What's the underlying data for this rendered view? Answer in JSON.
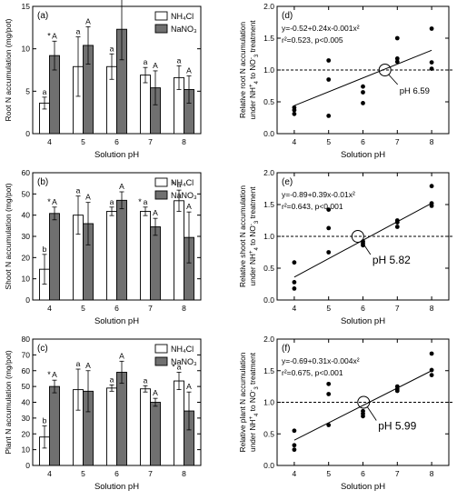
{
  "colors": {
    "white_bar": "#ffffff",
    "gray_bar": "#707070",
    "axis": "#000000"
  },
  "chart_data": [
    {
      "id": "a",
      "type": "bar",
      "panel_label": "(a)",
      "ylabel": "Root N accumulation (mg/pot)",
      "xlabel": "Solution pH",
      "categories": [
        "4",
        "5",
        "6",
        "7",
        "8"
      ],
      "ylim": [
        0,
        15
      ],
      "yticks": [
        "0",
        "5",
        "10",
        "15"
      ],
      "yticks_v": [
        0,
        5,
        10,
        15
      ],
      "legend": [
        "NH₄Cl",
        "NaNO₃"
      ],
      "legend_placement": "top-right",
      "series": [
        {
          "name": "NH₄Cl",
          "values": [
            3.6,
            7.9,
            7.9,
            6.9,
            6.6
          ],
          "errors": [
            0.7,
            3.5,
            1.5,
            0.9,
            1.4
          ],
          "labels": [
            "a",
            "a",
            "a",
            "a",
            "a"
          ],
          "stars": [
            "",
            "",
            "",
            "",
            ""
          ]
        },
        {
          "name": "NaNO₃",
          "values": [
            9.2,
            10.4,
            12.3,
            5.4,
            5.2
          ],
          "errors": [
            1.7,
            2.2,
            3.6,
            2.0,
            1.6
          ],
          "labels": [
            "A",
            "A",
            "A",
            "A",
            "A"
          ],
          "stars": [
            "*",
            "",
            "",
            "",
            ""
          ]
        }
      ]
    },
    {
      "id": "b",
      "type": "bar",
      "panel_label": "(b)",
      "ylabel": "Shoot N accumulation (mg/pot)",
      "xlabel": "Solution pH",
      "categories": [
        "4",
        "5",
        "6",
        "7",
        "8"
      ],
      "ylim": [
        0,
        60
      ],
      "yticks": [
        "0",
        "10",
        "20",
        "30",
        "40",
        "50",
        "60"
      ],
      "yticks_v": [
        0,
        10,
        20,
        30,
        40,
        50,
        60
      ],
      "legend": [
        "NH₄Cl",
        "NaNO₃"
      ],
      "legend_placement": "top-right",
      "series": [
        {
          "name": "NH₄Cl",
          "values": [
            14.5,
            40.0,
            41.8,
            41.8,
            46.8
          ],
          "errors": [
            7.0,
            9.0,
            2.0,
            2.0,
            5.0
          ],
          "labels": [
            "b",
            "a",
            "a",
            "a",
            "a"
          ],
          "stars": [
            "",
            "",
            "",
            "*",
            "*"
          ]
        },
        {
          "name": "NaNO₃",
          "values": [
            40.8,
            36.0,
            47.0,
            34.5,
            29.5
          ],
          "errors": [
            3.0,
            10.0,
            4.0,
            4.0,
            12.0
          ],
          "labels": [
            "A",
            "A",
            "A",
            "A",
            "A"
          ],
          "stars": [
            "*",
            "",
            "",
            "",
            ""
          ]
        }
      ]
    },
    {
      "id": "c",
      "type": "bar",
      "panel_label": "(c)",
      "ylabel": "Plant N accumulation (mg/pot)",
      "xlabel": "Solution pH",
      "categories": [
        "4",
        "5",
        "6",
        "7",
        "8"
      ],
      "ylim": [
        0,
        80
      ],
      "yticks": [
        "0",
        "10",
        "20",
        "30",
        "40",
        "50",
        "60",
        "70",
        "80"
      ],
      "yticks_v": [
        0,
        10,
        20,
        30,
        40,
        50,
        60,
        70,
        80
      ],
      "legend": [
        "NH₄Cl",
        "NaNO₃"
      ],
      "legend_placement": "top-right",
      "series": [
        {
          "name": "NH₄Cl",
          "values": [
            18.0,
            48.0,
            49.0,
            48.5,
            53.5
          ],
          "errors": [
            7.0,
            13.0,
            2.0,
            2.0,
            5.5
          ],
          "labels": [
            "b",
            "a",
            "a",
            "a",
            "a"
          ],
          "stars": [
            "",
            "",
            "",
            "",
            "*"
          ]
        },
        {
          "name": "NaNO₃",
          "values": [
            50.0,
            47.0,
            59.0,
            40.0,
            34.5
          ],
          "errors": [
            4.0,
            13.0,
            7.0,
            2.5,
            12.0
          ],
          "labels": [
            "A",
            "A",
            "A",
            "A",
            "A"
          ],
          "stars": [
            "*",
            "",
            "",
            "",
            ""
          ]
        }
      ]
    },
    {
      "id": "d",
      "type": "scatter",
      "panel_label": "(d)",
      "ylabel_line1": "Relative root N accumulation",
      "ylabel_line2_html": "under NH<tspan baseline-shift='super' font-size='6'>+</tspan><tspan baseline-shift='sub' font-size='6'>4</tspan> to NO<tspan baseline-shift='super' font-size='6'>-</tspan><tspan baseline-shift='sub' font-size='6'>3</tspan> treatment",
      "xlabel": "Solution pH",
      "xlim": [
        3.5,
        8.5
      ],
      "xticks": [
        "4",
        "5",
        "6",
        "7",
        "8"
      ],
      "xticks_v": [
        4,
        5,
        6,
        7,
        8
      ],
      "ylim": [
        0,
        2
      ],
      "yticks": [
        "0.0",
        "0.5",
        "1.0",
        "1.5",
        "2.0"
      ],
      "yticks_v": [
        0,
        0.5,
        1.0,
        1.5,
        2.0
      ],
      "equation": "y=-0.52+0.24x-0.001x²",
      "stats": "r²=0.523, p<0.005",
      "reference_y": 1.0,
      "fit_line": {
        "x": [
          4.0,
          8.0
        ],
        "y": [
          0.44,
          1.31
        ]
      },
      "crossover": {
        "x": 6.64,
        "y": 1.0,
        "label": "pH 6.59"
      },
      "points": [
        [
          4.0,
          0.31
        ],
        [
          4.0,
          0.37
        ],
        [
          4.0,
          0.41
        ],
        [
          5.0,
          0.28
        ],
        [
          5.0,
          0.85
        ],
        [
          5.0,
          1.15
        ],
        [
          6.0,
          0.48
        ],
        [
          6.0,
          0.65
        ],
        [
          6.0,
          0.74
        ],
        [
          7.0,
          1.13
        ],
        [
          7.0,
          1.18
        ],
        [
          7.0,
          1.5
        ],
        [
          8.0,
          1.02
        ],
        [
          8.0,
          1.12
        ],
        [
          8.0,
          1.65
        ]
      ]
    },
    {
      "id": "e",
      "type": "scatter",
      "panel_label": "(e)",
      "ylabel_line1": "Relative shoot N accumulation",
      "ylabel_line2_html": "under NH<tspan baseline-shift='super' font-size='6'>+</tspan><tspan baseline-shift='sub' font-size='6'>4</tspan> to NO<tspan baseline-shift='super' font-size='6'>-</tspan><tspan baseline-shift='sub' font-size='6'>3</tspan> treatment",
      "xlabel": "Solution pH",
      "xlim": [
        3.5,
        8.5
      ],
      "xticks": [
        "4",
        "5",
        "6",
        "7",
        "8"
      ],
      "xticks_v": [
        4,
        5,
        6,
        7,
        8
      ],
      "ylim": [
        0,
        2
      ],
      "yticks": [
        "0.0",
        "0.5",
        "1.0",
        "1.5",
        "2.0"
      ],
      "yticks_v": [
        0,
        0.5,
        1.0,
        1.5,
        2.0
      ],
      "equation": "y=-0.89+0.39x-0.01x²",
      "stats": "r²=0.643, p<0.001",
      "reference_y": 1.0,
      "fit_line": {
        "x": [
          4.0,
          8.0
        ],
        "y": [
          0.36,
          1.52
        ]
      },
      "crossover": {
        "x": 5.85,
        "y": 1.0,
        "label": "pH 5.82"
      },
      "points": [
        [
          4.0,
          0.18
        ],
        [
          4.0,
          0.28
        ],
        [
          4.0,
          0.59
        ],
        [
          5.0,
          0.75
        ],
        [
          5.0,
          1.13
        ],
        [
          5.0,
          1.42
        ],
        [
          6.0,
          0.86
        ],
        [
          6.0,
          0.89
        ],
        [
          6.0,
          0.92
        ],
        [
          7.0,
          1.15
        ],
        [
          7.0,
          1.22
        ],
        [
          7.0,
          1.25
        ],
        [
          8.0,
          1.48
        ],
        [
          8.0,
          1.52
        ],
        [
          8.0,
          1.79
        ]
      ]
    },
    {
      "id": "f",
      "type": "scatter",
      "panel_label": "(f)",
      "ylabel_line1": "Relative plant N accumulation",
      "ylabel_line2_html": "under NH<tspan baseline-shift='super' font-size='6'>+</tspan><tspan baseline-shift='sub' font-size='6'>4</tspan> to NO<tspan baseline-shift='super' font-size='6'>-</tspan><tspan baseline-shift='sub' font-size='6'>3</tspan> treatment",
      "xlabel": "Solution pH",
      "xlim": [
        3.5,
        8.5
      ],
      "xticks": [
        "4",
        "5",
        "6",
        "7",
        "8"
      ],
      "xticks_v": [
        4,
        5,
        6,
        7,
        8
      ],
      "ylim": [
        0,
        2
      ],
      "yticks": [
        "0.0",
        "0.5",
        "1.0",
        "1.5",
        "2.0"
      ],
      "yticks_v": [
        0,
        0.5,
        1.0,
        1.5,
        2.0
      ],
      "equation": "y=-0.69+0.31x-0.004x²",
      "stats": "r²=0.675, p<0.001",
      "reference_y": 1.0,
      "fit_line": {
        "x": [
          4.0,
          8.0
        ],
        "y": [
          0.4,
          1.5
        ]
      },
      "crossover": {
        "x": 6.02,
        "y": 1.0,
        "label": "pH 5.99"
      },
      "points": [
        [
          4.0,
          0.25
        ],
        [
          4.0,
          0.32
        ],
        [
          4.0,
          0.55
        ],
        [
          5.0,
          0.64
        ],
        [
          5.0,
          1.13
        ],
        [
          5.0,
          1.29
        ],
        [
          6.0,
          0.78
        ],
        [
          6.0,
          0.82
        ],
        [
          6.0,
          0.86
        ],
        [
          7.0,
          1.18
        ],
        [
          7.0,
          1.21
        ],
        [
          7.0,
          1.25
        ],
        [
          8.0,
          1.43
        ],
        [
          8.0,
          1.51
        ],
        [
          8.0,
          1.77
        ]
      ]
    }
  ]
}
